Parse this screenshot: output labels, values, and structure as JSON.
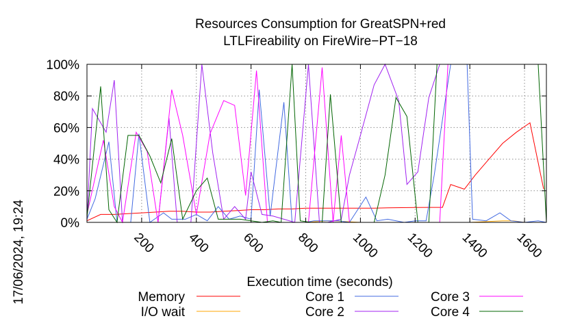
{
  "timestamp": "17/06/2024, 19:24",
  "chart_data": {
    "type": "line",
    "title_lines": [
      "Resources Consumption for GreatSPN+red",
      "LTLFireability on FireWire−PT−18"
    ],
    "xlabel": "Execution time (seconds)",
    "ylabel": "",
    "xlim": [
      0,
      1680
    ],
    "ylim": [
      0,
      100
    ],
    "x_ticks": [
      200,
      400,
      600,
      800,
      1000,
      1200,
      1400,
      1600
    ],
    "x_tick_labels": [
      "200",
      "400",
      "600",
      "800",
      "1000",
      "1200",
      "1400",
      "1600"
    ],
    "y_ticks": [
      0,
      20,
      40,
      60,
      80,
      100
    ],
    "y_tick_labels": [
      "0%",
      "20%",
      "40%",
      "60%",
      "80%",
      "100%"
    ],
    "grid": true,
    "legend_position": "bottom",
    "series": [
      {
        "name": "Memory",
        "color": "#ff0000",
        "points": [
          [
            0,
            1
          ],
          [
            50,
            5
          ],
          [
            100,
            5
          ],
          [
            150,
            5.5
          ],
          [
            200,
            6
          ],
          [
            250,
            6.5
          ],
          [
            300,
            7
          ],
          [
            350,
            7
          ],
          [
            400,
            6.5
          ],
          [
            450,
            6.5
          ],
          [
            500,
            7
          ],
          [
            550,
            7.5
          ],
          [
            600,
            8
          ],
          [
            650,
            8
          ],
          [
            700,
            8.5
          ],
          [
            750,
            8.5
          ],
          [
            800,
            9
          ],
          [
            850,
            9
          ],
          [
            900,
            9
          ],
          [
            950,
            9
          ],
          [
            1000,
            9
          ],
          [
            1050,
            9
          ],
          [
            1100,
            9.2
          ],
          [
            1150,
            9.3
          ],
          [
            1200,
            9.4
          ],
          [
            1250,
            9.5
          ],
          [
            1300,
            9.5
          ],
          [
            1330,
            24
          ],
          [
            1380,
            21
          ],
          [
            1420,
            30
          ],
          [
            1470,
            40
          ],
          [
            1520,
            50
          ],
          [
            1570,
            57
          ],
          [
            1620,
            63
          ],
          [
            1670,
            21
          ]
        ]
      },
      {
        "name": "I/O wait",
        "color": "#ffa500",
        "points": [
          [
            0,
            0
          ],
          [
            200,
            0
          ],
          [
            400,
            0
          ],
          [
            600,
            0
          ],
          [
            800,
            0
          ],
          [
            880,
            1
          ],
          [
            900,
            1
          ],
          [
            1000,
            0
          ],
          [
            1200,
            0
          ],
          [
            1400,
            0
          ],
          [
            1520,
            1
          ],
          [
            1560,
            1
          ],
          [
            1600,
            0
          ],
          [
            1680,
            0
          ]
        ]
      },
      {
        "name": "Core 1",
        "color": "#4169e1",
        "points": [
          [
            0,
            2
          ],
          [
            30,
            15
          ],
          [
            80,
            51
          ],
          [
            110,
            0
          ],
          [
            160,
            0
          ],
          [
            190,
            56
          ],
          [
            230,
            0
          ],
          [
            280,
            6
          ],
          [
            310,
            2
          ],
          [
            360,
            2
          ],
          [
            400,
            5
          ],
          [
            440,
            1
          ],
          [
            480,
            10
          ],
          [
            520,
            2
          ],
          [
            560,
            4
          ],
          [
            600,
            2
          ],
          [
            630,
            84
          ],
          [
            670,
            4
          ],
          [
            720,
            76
          ],
          [
            750,
            0
          ],
          [
            800,
            0
          ],
          [
            830,
            1
          ],
          [
            880,
            1
          ],
          [
            920,
            1
          ],
          [
            960,
            0
          ],
          [
            1020,
            16
          ],
          [
            1060,
            1
          ],
          [
            1100,
            2
          ],
          [
            1160,
            0
          ],
          [
            1200,
            1
          ],
          [
            1240,
            1
          ],
          [
            1270,
            30
          ],
          [
            1330,
            100
          ],
          [
            1370,
            100
          ],
          [
            1390,
            100
          ],
          [
            1410,
            2
          ],
          [
            1460,
            1
          ],
          [
            1510,
            6
          ],
          [
            1550,
            1
          ],
          [
            1600,
            0
          ],
          [
            1650,
            1
          ],
          [
            1680,
            0
          ]
        ]
      },
      {
        "name": "Core 2",
        "color": "#a020f0",
        "points": [
          [
            0,
            2
          ],
          [
            20,
            72
          ],
          [
            70,
            57
          ],
          [
            100,
            90
          ],
          [
            130,
            0
          ],
          [
            180,
            0
          ],
          [
            220,
            0
          ],
          [
            260,
            0
          ],
          [
            300,
            66
          ],
          [
            330,
            0
          ],
          [
            380,
            0
          ],
          [
            420,
            100
          ],
          [
            460,
            44
          ],
          [
            500,
            2
          ],
          [
            540,
            10
          ],
          [
            580,
            2
          ],
          [
            600,
            32
          ],
          [
            640,
            5
          ],
          [
            680,
            4
          ],
          [
            720,
            2
          ],
          [
            760,
            0
          ],
          [
            810,
            100
          ],
          [
            850,
            0
          ],
          [
            880,
            0
          ],
          [
            930,
            2
          ],
          [
            960,
            30
          ],
          [
            1000,
            55
          ],
          [
            1050,
            87
          ],
          [
            1090,
            100
          ],
          [
            1140,
            77
          ],
          [
            1170,
            24
          ],
          [
            1210,
            32
          ],
          [
            1250,
            79
          ],
          [
            1290,
            100
          ],
          [
            1330,
            100
          ],
          [
            1680,
            100
          ]
        ]
      },
      {
        "name": "Core 3",
        "color": "#ff00ff",
        "points": [
          [
            0,
            5
          ],
          [
            60,
            52
          ],
          [
            100,
            10
          ],
          [
            130,
            0
          ],
          [
            180,
            57
          ],
          [
            220,
            45
          ],
          [
            260,
            0
          ],
          [
            310,
            84
          ],
          [
            350,
            55
          ],
          [
            400,
            5
          ],
          [
            450,
            56
          ],
          [
            500,
            77
          ],
          [
            540,
            74
          ],
          [
            580,
            17
          ],
          [
            620,
            96
          ],
          [
            660,
            0
          ],
          [
            700,
            0
          ],
          [
            740,
            0
          ],
          [
            780,
            0
          ],
          [
            810,
            0
          ],
          [
            860,
            98
          ],
          [
            900,
            0
          ],
          [
            930,
            55
          ],
          [
            960,
            0
          ],
          [
            1000,
            0
          ],
          [
            1050,
            0
          ],
          [
            1090,
            0
          ],
          [
            1130,
            0
          ],
          [
            1170,
            0
          ],
          [
            1210,
            0
          ],
          [
            1250,
            0
          ],
          [
            1290,
            0
          ],
          [
            1320,
            100
          ],
          [
            1350,
            100
          ],
          [
            1680,
            100
          ]
        ]
      },
      {
        "name": "Core 4",
        "color": "#006400",
        "points": [
          [
            0,
            3
          ],
          [
            50,
            86
          ],
          [
            80,
            8
          ],
          [
            110,
            0
          ],
          [
            150,
            55
          ],
          [
            190,
            55
          ],
          [
            230,
            42
          ],
          [
            270,
            25
          ],
          [
            310,
            53
          ],
          [
            350,
            2
          ],
          [
            400,
            20
          ],
          [
            440,
            28
          ],
          [
            480,
            2
          ],
          [
            520,
            2
          ],
          [
            560,
            2
          ],
          [
            600,
            1
          ],
          [
            640,
            0
          ],
          [
            680,
            1
          ],
          [
            710,
            0
          ],
          [
            750,
            100
          ],
          [
            780,
            1
          ],
          [
            820,
            0
          ],
          [
            860,
            0
          ],
          [
            890,
            81
          ],
          [
            930,
            0
          ],
          [
            970,
            0
          ],
          [
            1010,
            0
          ],
          [
            1050,
            0
          ],
          [
            1090,
            30
          ],
          [
            1130,
            79
          ],
          [
            1170,
            67
          ],
          [
            1210,
            0
          ],
          [
            1250,
            0
          ],
          [
            1280,
            100
          ],
          [
            1310,
            100
          ],
          [
            1350,
            100
          ],
          [
            1650,
            100
          ],
          [
            1680,
            0
          ]
        ]
      }
    ]
  }
}
